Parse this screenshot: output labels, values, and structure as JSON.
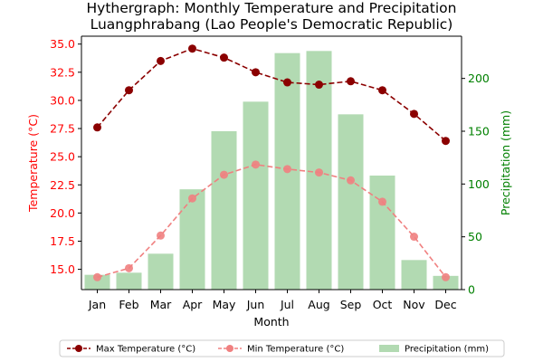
{
  "chart_data": {
    "type": "bar+line",
    "title": "Hythergraph: Monthly Temperature and Precipitation",
    "subtitle": "Luangphrabang (Lao People's Democratic Republic)",
    "xlabel": "Month",
    "ylabel_left": "Temperature (°C)",
    "ylabel_right": "Precipitation (mm)",
    "categories": [
      "Jan",
      "Feb",
      "Mar",
      "Apr",
      "May",
      "Jun",
      "Jul",
      "Aug",
      "Sep",
      "Oct",
      "Nov",
      "Dec"
    ],
    "left_axis": {
      "ylim": [
        13.2,
        35.7
      ],
      "ticks": [
        "15.0",
        "17.5",
        "20.0",
        "22.5",
        "25.0",
        "27.5",
        "30.0",
        "32.5",
        "35.0"
      ],
      "color": "#ff0000"
    },
    "right_axis": {
      "ylim": [
        0,
        240
      ],
      "ticks": [
        "0",
        "50",
        "100",
        "150",
        "200"
      ],
      "color": "#008000"
    },
    "series": [
      {
        "name": "Max Temperature (°C)",
        "axis": "left",
        "kind": "line",
        "style": "dashed",
        "color": "#8b0000",
        "values": [
          27.6,
          30.9,
          33.5,
          34.6,
          33.8,
          32.5,
          31.6,
          31.4,
          31.7,
          30.9,
          28.8,
          26.4
        ]
      },
      {
        "name": "Min Temperature (°C)",
        "axis": "left",
        "kind": "line",
        "style": "dashed",
        "color": "#f08080",
        "values": [
          14.3,
          15.1,
          18.0,
          21.3,
          23.4,
          24.3,
          23.9,
          23.6,
          22.9,
          21.0,
          17.9,
          14.3
        ]
      },
      {
        "name": "Precipitation (mm)",
        "axis": "right",
        "kind": "bar",
        "color": "#b2dab2",
        "values": [
          14,
          16,
          34,
          95,
          150,
          178,
          224,
          226,
          166,
          108,
          28,
          13
        ]
      }
    ],
    "legend": {
      "placement": "bottom"
    },
    "grid": false
  }
}
